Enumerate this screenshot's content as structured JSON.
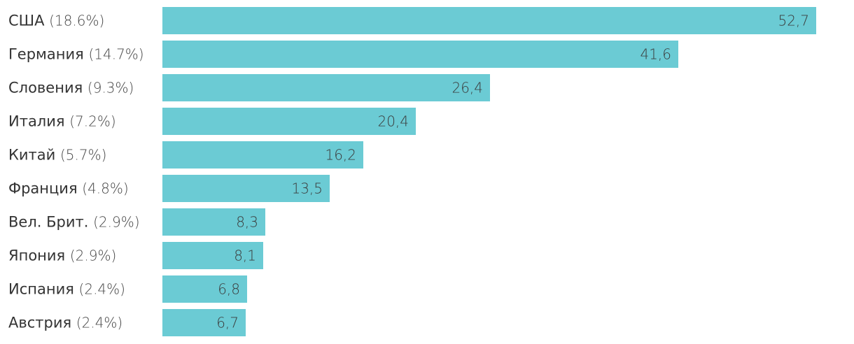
{
  "chart_data": {
    "type": "bar",
    "orientation": "horizontal",
    "categories": [
      {
        "name": "США",
        "share": "(18.6%)"
      },
      {
        "name": "Германия",
        "share": "(14.7%)"
      },
      {
        "name": "Словения",
        "share": "(9.3%)"
      },
      {
        "name": "Италия",
        "share": "(7.2%)"
      },
      {
        "name": "Китай",
        "share": "(5.7%)"
      },
      {
        "name": "Франция",
        "share": "(4.8%)"
      },
      {
        "name": "Вел. Брит.",
        "share": "(2.9%)"
      },
      {
        "name": "Япония",
        "share": "(2.9%)"
      },
      {
        "name": "Испания",
        "share": "(2.4%)"
      },
      {
        "name": "Австрия",
        "share": "(2.4%)"
      }
    ],
    "values": [
      52.7,
      41.6,
      26.4,
      20.4,
      16.2,
      13.5,
      8.3,
      8.1,
      6.8,
      6.7
    ],
    "value_labels": [
      "52,7",
      "41,6",
      "26,4",
      "20,4",
      "16,2",
      "13,5",
      "8,3",
      "8,1",
      "6,8",
      "6,7"
    ],
    "xlim": [
      0,
      52.7
    ],
    "grid": false,
    "legend": "none",
    "bar_color": "#6bcbd4",
    "label_color": "#333333"
  }
}
